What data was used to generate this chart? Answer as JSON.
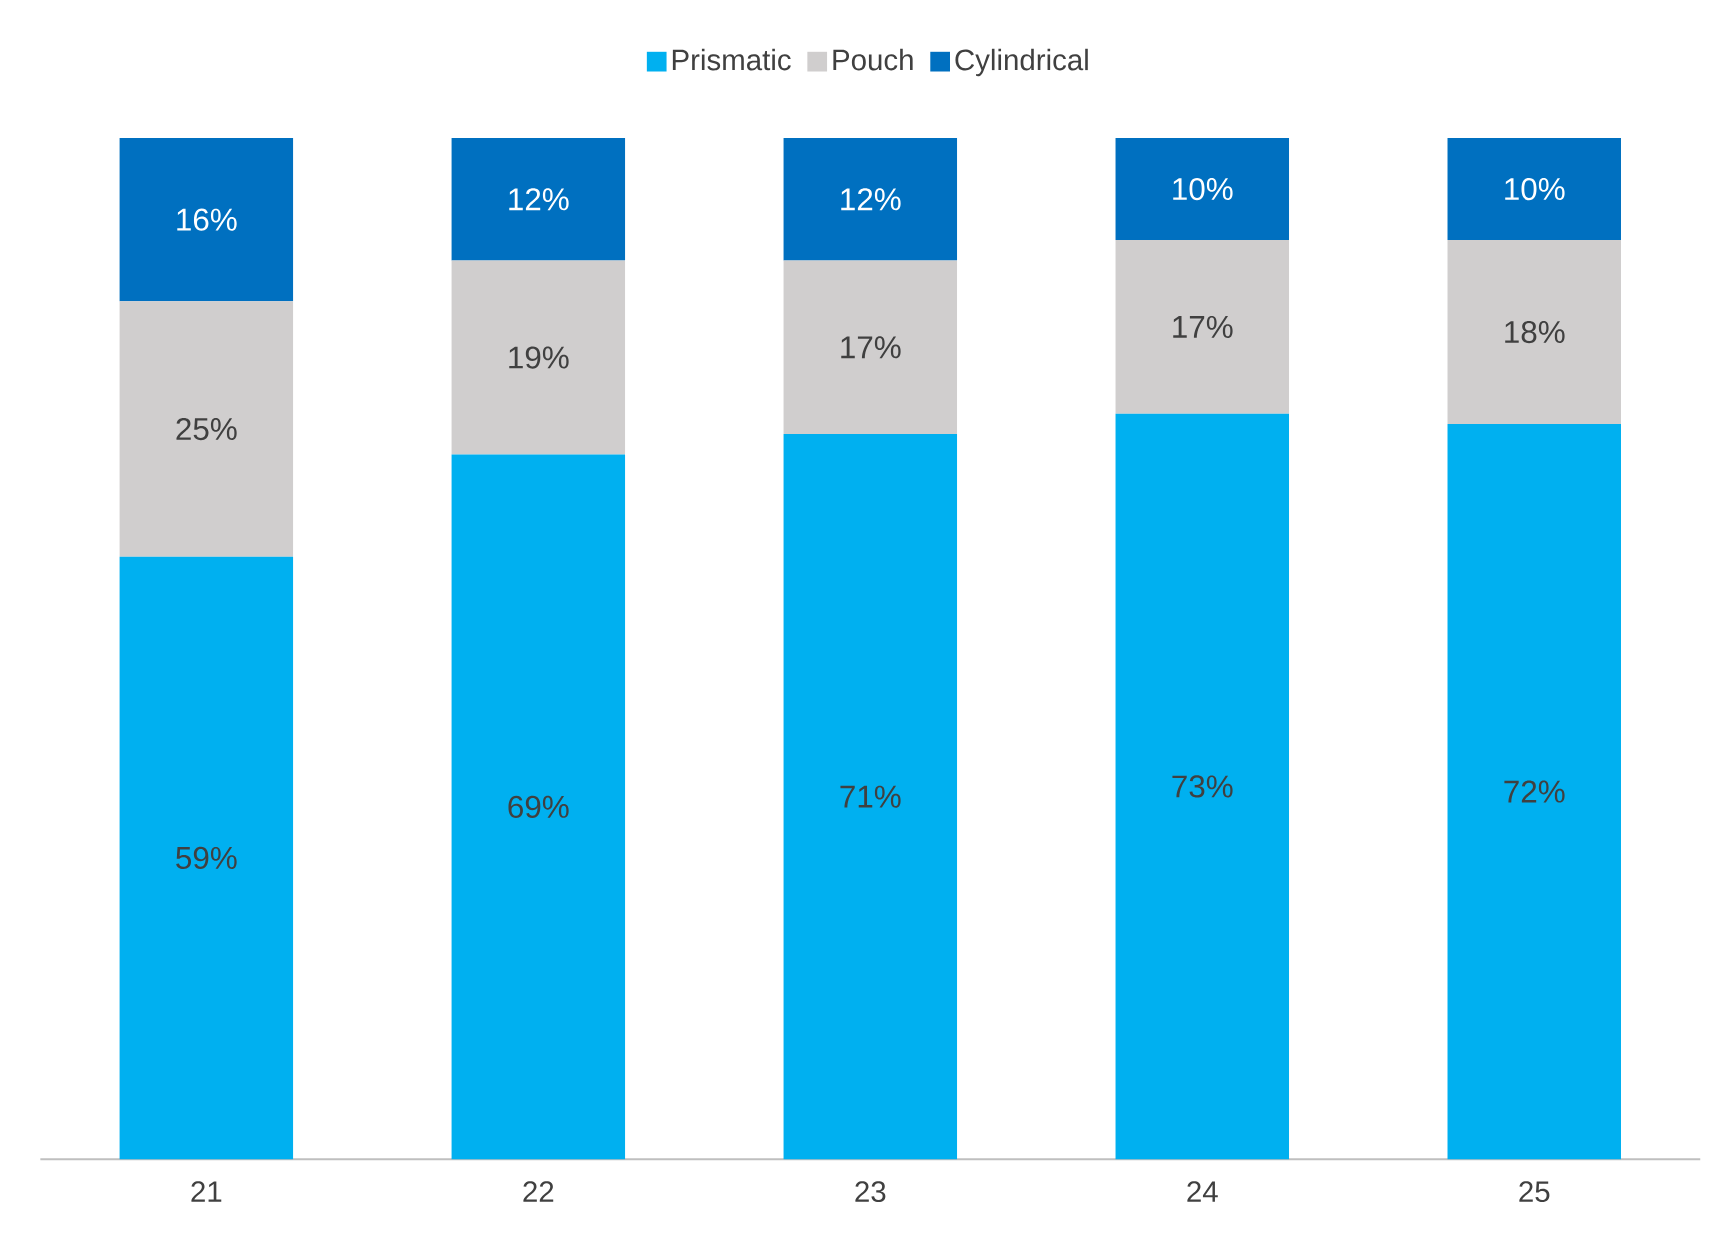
{
  "chart_data": {
    "type": "bar",
    "stacked": true,
    "legend": "top",
    "categories": [
      "21",
      "22",
      "23",
      "24",
      "25"
    ],
    "series": [
      {
        "name": "Prismatic",
        "color": "#00b0f0",
        "values": [
          59,
          69,
          71,
          73,
          72
        ],
        "value_labels": [
          "59%",
          "69%",
          "71%",
          "73%",
          "72%"
        ]
      },
      {
        "name": "Pouch",
        "color": "#d0cece",
        "values": [
          25,
          19,
          17,
          17,
          18
        ],
        "value_labels": [
          "25%",
          "19%",
          "17%",
          "17%",
          "18%"
        ]
      },
      {
        "name": "Cylindrical",
        "color": "#0070c0",
        "values": [
          16,
          12,
          12,
          10,
          10
        ],
        "value_labels": [
          "16%",
          "12%",
          "12%",
          "10%",
          "10%"
        ]
      }
    ]
  }
}
